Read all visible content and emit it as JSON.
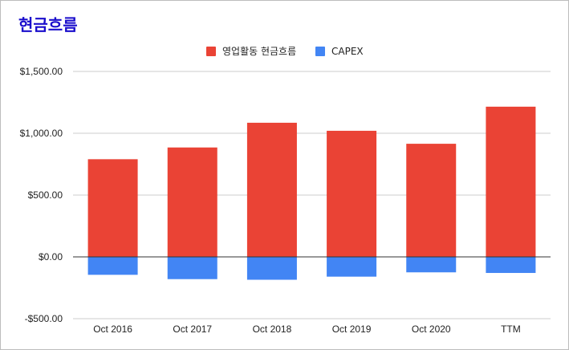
{
  "chart_data": {
    "type": "bar",
    "title": "현금흐름",
    "categories": [
      "Oct 2016",
      "Oct 2017",
      "Oct 2018",
      "Oct 2019",
      "Oct 2020",
      "TTM"
    ],
    "series": [
      {
        "name": "영업활동 현금흐름",
        "color": "#ea4335",
        "values": [
          790,
          885,
          1085,
          1020,
          915,
          1215
        ]
      },
      {
        "name": "CAPEX",
        "color": "#4285f4",
        "values": [
          -145,
          -180,
          -185,
          -160,
          -125,
          -130
        ]
      }
    ],
    "y_tick_labels": [
      "$1,500.00",
      "$1,000.00",
      "$500.00",
      "$0.00",
      "-$500.00"
    ],
    "y_ticks": [
      1500,
      1000,
      500,
      0,
      -500
    ],
    "ylim": [
      -500,
      1500
    ],
    "grid": true,
    "legend_position": "top"
  }
}
